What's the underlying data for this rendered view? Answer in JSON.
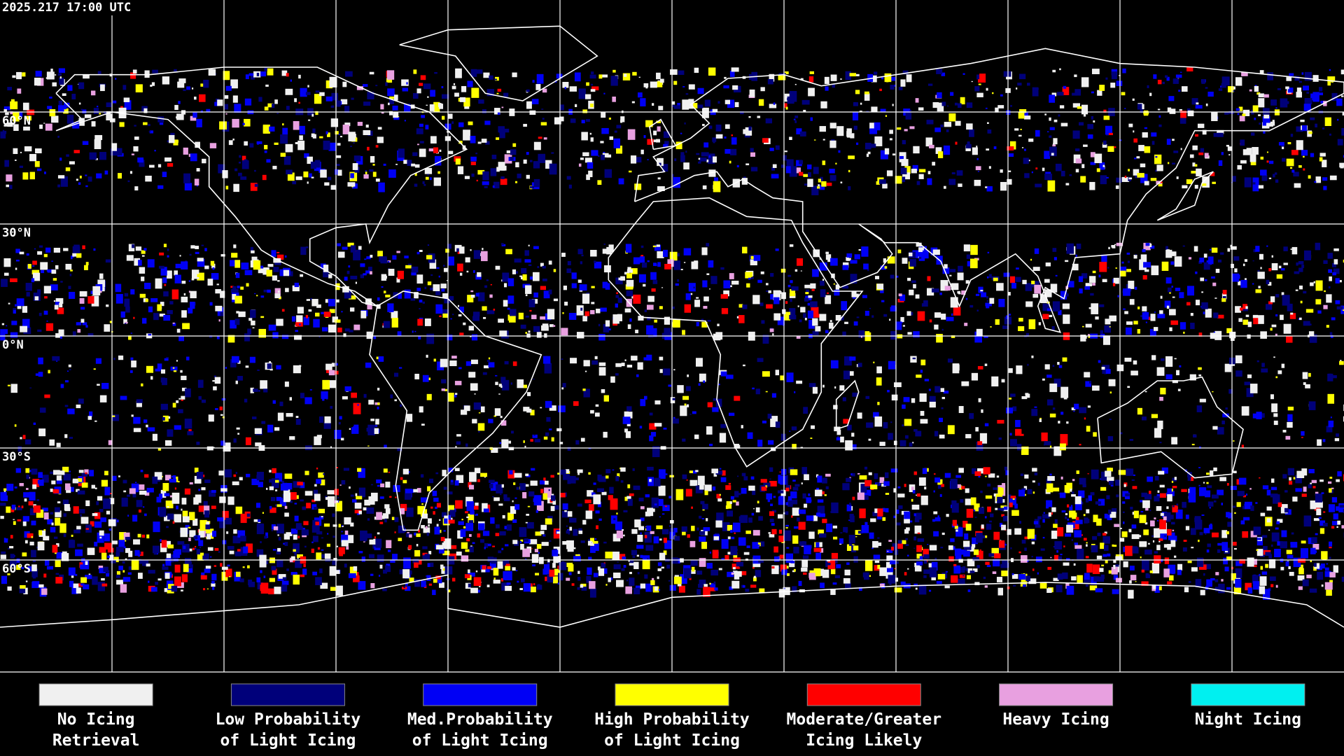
{
  "header": {
    "timestamp": "2025.217 17:00 UTC"
  },
  "map": {
    "lat_labels": [
      "60°N",
      "30°N",
      "0°N",
      "30°S",
      "60°S"
    ]
  },
  "legend": {
    "items": [
      {
        "color": "#f0f0f0",
        "lines": [
          "No Icing",
          "Retrieval"
        ]
      },
      {
        "color": "#00007a",
        "lines": [
          "Low Probability",
          "of Light Icing"
        ]
      },
      {
        "color": "#0000f5",
        "lines": [
          "Med.Probability",
          "of Light Icing"
        ]
      },
      {
        "color": "#ffff00",
        "lines": [
          "High Probability",
          "of Light Icing"
        ]
      },
      {
        "color": "#ff0000",
        "lines": [
          "Moderate/Greater",
          "Icing Likely"
        ]
      },
      {
        "color": "#e8a0e0",
        "lines": [
          "Heavy Icing"
        ]
      },
      {
        "color": "#00f0f0",
        "lines": [
          "Night Icing"
        ]
      }
    ]
  }
}
